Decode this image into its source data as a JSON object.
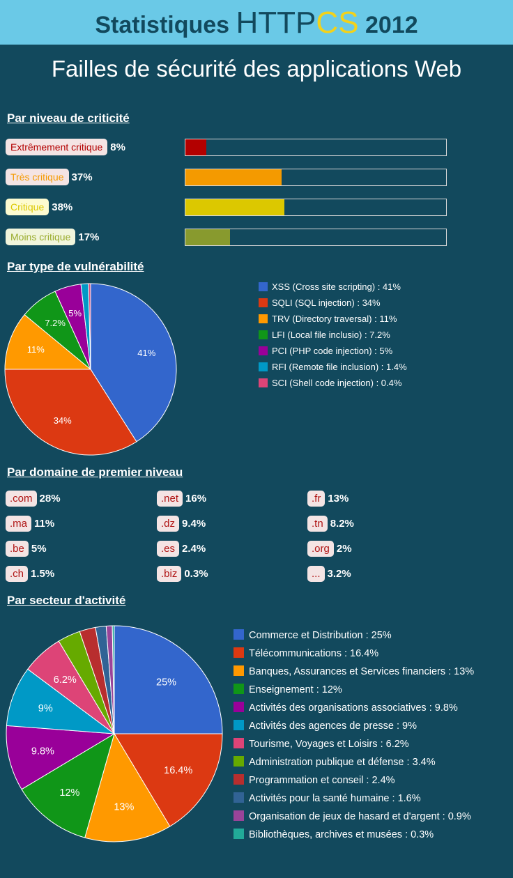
{
  "header": {
    "title_prefix": "Statistiques",
    "brand_http": "HTTP",
    "brand_cs": "CS",
    "year": "2012"
  },
  "subtitle": "Failles de sécurité des applications Web",
  "sections": {
    "criticality": "Par niveau de criticité",
    "vuln_type": "Par type de vulnérabilité",
    "tld": "Par domaine de premier niveau",
    "sector": "Par secteur d'activité"
  },
  "colors": {
    "background": "#12495d",
    "header": "#6ac9e7",
    "brand_cs": "#f3d21a"
  },
  "criticality": [
    {
      "label": "Extrêmement critique",
      "pct_text": "8%",
      "value": 8,
      "color": "#b30000",
      "label_color": "#b30000"
    },
    {
      "label": "Très critique",
      "pct_text": "37%",
      "value": 37,
      "color": "#f49a00",
      "label_color": "#f49a00"
    },
    {
      "label": "Critique",
      "pct_text": "38%",
      "value": 38,
      "color": "#dcc800",
      "label_color": "#dcc800",
      "label_bg": "#fdfbd0"
    },
    {
      "label": "Moins critique",
      "pct_text": "17%",
      "value": 17,
      "color": "#889a2e",
      "label_color": "#9aac2e",
      "label_bg": "#f1f5dc"
    }
  ],
  "tld": [
    {
      "label": ".com",
      "pct": "28%"
    },
    {
      "label": ".net",
      "pct": "16%"
    },
    {
      "label": ".fr",
      "pct": "13%"
    },
    {
      "label": ".ma",
      "pct": "11%"
    },
    {
      "label": ".dz",
      "pct": "9.4%"
    },
    {
      "label": ".tn",
      "pct": "8.2%"
    },
    {
      "label": ".be",
      "pct": "5%"
    },
    {
      "label": ".es",
      "pct": "2.4%"
    },
    {
      "label": ".org",
      "pct": "2%"
    },
    {
      "label": ".ch",
      "pct": "1.5%"
    },
    {
      "label": ".biz",
      "pct": "0.3%"
    },
    {
      "label": "...",
      "pct": "3.2%"
    }
  ],
  "chart_data": [
    {
      "type": "pie",
      "series": [
        {
          "label": "XSS (Cross site scripting) : 41%",
          "value": 41,
          "slice_label": "41%",
          "color": "#3366cc"
        },
        {
          "label": "SQLI (SQL injection) : 34%",
          "value": 34,
          "slice_label": "34%",
          "color": "#dc3912"
        },
        {
          "label": "TRV (Directory traversal) : 11%",
          "value": 11,
          "slice_label": "11%",
          "color": "#ff9900"
        },
        {
          "label": "LFI (Local file inclusio) : 7.2%",
          "value": 7.2,
          "slice_label": "7.2%",
          "color": "#109618"
        },
        {
          "label": "PCI (PHP code injection) : 5%",
          "value": 5,
          "slice_label": "5%",
          "color": "#990099"
        },
        {
          "label": "RFI (Remote file inclusion) : 1.4%",
          "value": 1.4,
          "slice_label": "",
          "color": "#0099c6"
        },
        {
          "label": "SCI (Shell code injection) : 0.4%",
          "value": 0.4,
          "slice_label": "",
          "color": "#dd4477"
        }
      ]
    },
    {
      "type": "pie",
      "series": [
        {
          "label": "Commerce et Distribution : 25%",
          "value": 25,
          "slice_label": "25%",
          "color": "#3366cc"
        },
        {
          "label": "Télécommunications : 16.4%",
          "value": 16.4,
          "slice_label": "16.4%",
          "color": "#dc3912"
        },
        {
          "label": "Banques, Assurances et Services financiers : 13%",
          "value": 13,
          "slice_label": "13%",
          "color": "#ff9900"
        },
        {
          "label": "Enseignement : 12%",
          "value": 12,
          "slice_label": "12%",
          "color": "#109618"
        },
        {
          "label": "Activités des organisations associatives : 9.8%",
          "value": 9.8,
          "slice_label": "9.8%",
          "color": "#990099"
        },
        {
          "label": "Activités des agences de presse : 9%",
          "value": 9,
          "slice_label": "9%",
          "color": "#0099c6"
        },
        {
          "label": "Tourisme, Voyages et Loisirs : 6.2%",
          "value": 6.2,
          "slice_label": "6.2%",
          "color": "#dd4477"
        },
        {
          "label": "Administration publique et défense : 3.4%",
          "value": 3.4,
          "slice_label": "",
          "color": "#66aa00"
        },
        {
          "label": "Programmation et conseil : 2.4%",
          "value": 2.4,
          "slice_label": "",
          "color": "#b82e2e"
        },
        {
          "label": "Activités pour la santé humaine : 1.6%",
          "value": 1.6,
          "slice_label": "",
          "color": "#316395"
        },
        {
          "label": "Organisation de jeux de hasard et d'argent : 0.9%",
          "value": 0.9,
          "slice_label": "",
          "color": "#994499"
        },
        {
          "label": "Bibliothèques, archives et musées : 0.3%",
          "value": 0.3,
          "slice_label": "",
          "color": "#22aa99"
        }
      ]
    }
  ]
}
